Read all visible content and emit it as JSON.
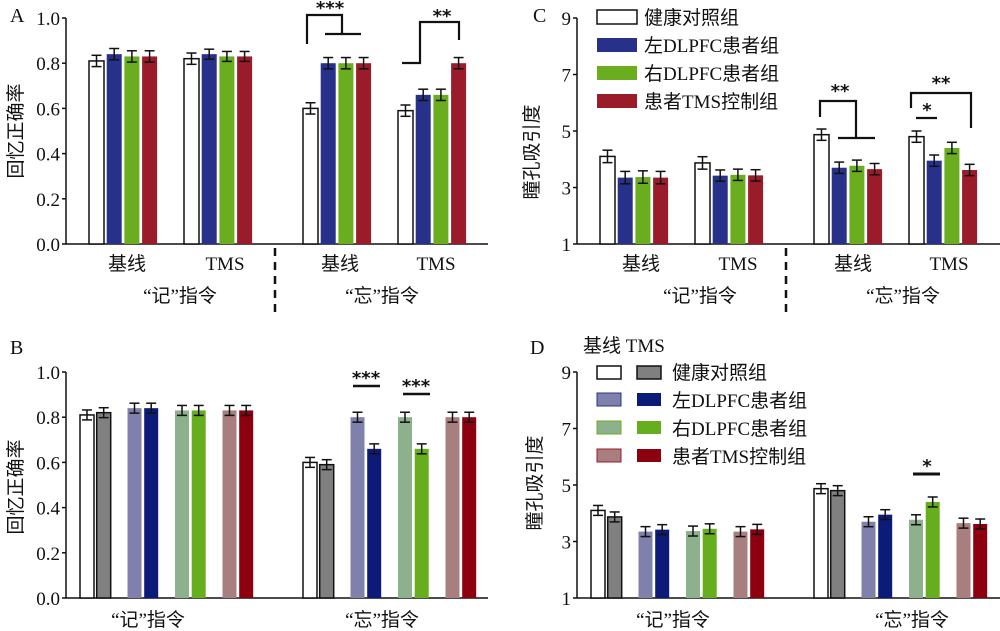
{
  "colors": {
    "healthy": "#ffffff",
    "left_dlpfc": "#27318a",
    "right_dlpfc": "#6aae1f",
    "tms_control": "#9a1c2a",
    "healthy_tms": "#808080",
    "left_dlpfc_base": "#8080ad",
    "left_dlpfc_tms": "#0c1b78",
    "right_dlpfc_base": "#8db08d",
    "right_dlpfc_tms": "#66ae1e",
    "tms_control_base": "#a97e7e",
    "tms_control_tms": "#8c000f"
  },
  "chart_data": [
    {
      "panel": "A",
      "type": "bar",
      "ylabel": "回忆正确率",
      "ylim": [
        0,
        1.0
      ],
      "yticks": [
        "0.0",
        "0.2",
        "0.4",
        "0.6",
        "0.8",
        "1.0"
      ],
      "ytick_values": [
        0,
        0.2,
        0.4,
        0.6,
        0.8,
        1.0
      ],
      "groups": [
        "“记”指令",
        "“忘”指令"
      ],
      "categories": [
        "基线",
        "TMS",
        "基线",
        "TMS"
      ],
      "series": [
        {
          "name": "健康对照组",
          "color_key": "healthy",
          "values": [
            0.81,
            0.82,
            0.6,
            0.59
          ],
          "err": [
            0.025,
            0.025,
            0.025,
            0.025
          ]
        },
        {
          "name": "左DLPFC患者组",
          "color_key": "left_dlpfc",
          "values": [
            0.84,
            0.84,
            0.8,
            0.66
          ],
          "err": [
            0.025,
            0.022,
            0.025,
            0.025
          ]
        },
        {
          "name": "右DLPFC患者组",
          "color_key": "right_dlpfc",
          "values": [
            0.83,
            0.83,
            0.8,
            0.66
          ],
          "err": [
            0.025,
            0.022,
            0.025,
            0.025
          ]
        },
        {
          "name": "患者TMS控制组",
          "color_key": "tms_control",
          "values": [
            0.83,
            0.83,
            0.8,
            0.8
          ],
          "err": [
            0.025,
            0.022,
            0.025,
            0.025
          ]
        }
      ],
      "annotations": [
        "***",
        "**"
      ],
      "grid": false
    },
    {
      "panel": "B",
      "type": "bar",
      "ylabel": "回忆正确率",
      "ylim": [
        0,
        1.0
      ],
      "yticks": [
        "0.0",
        "0.2",
        "0.4",
        "0.6",
        "0.8",
        "1.0"
      ],
      "ytick_values": [
        0,
        0.2,
        0.4,
        0.6,
        0.8,
        1.0
      ],
      "categories": [
        "“记”指令",
        "“忘”指令"
      ],
      "pairs": [
        {
          "name": "健康对照组",
          "base_color_key": "healthy",
          "tms_color_key": "healthy_tms",
          "baseline": [
            0.81,
            0.6
          ],
          "tms": [
            0.82,
            0.59
          ]
        },
        {
          "name": "左DLPFC患者组",
          "base_color_key": "left_dlpfc_base",
          "tms_color_key": "left_dlpfc_tms",
          "baseline": [
            0.84,
            0.8
          ],
          "tms": [
            0.84,
            0.66
          ]
        },
        {
          "name": "右DLPFC患者组",
          "base_color_key": "right_dlpfc_base",
          "tms_color_key": "right_dlpfc_tms",
          "baseline": [
            0.83,
            0.8
          ],
          "tms": [
            0.83,
            0.66
          ]
        },
        {
          "name": "患者TMS控制组",
          "base_color_key": "tms_control_base",
          "tms_color_key": "tms_control_tms",
          "baseline": [
            0.83,
            0.8
          ],
          "tms": [
            0.83,
            0.8
          ]
        }
      ],
      "annotations": [
        "***",
        "***"
      ],
      "grid": false
    },
    {
      "panel": "C",
      "type": "bar",
      "ylabel": "瞳孔吸引度",
      "ylim": [
        1,
        9
      ],
      "yticks": [
        "1",
        "3",
        "5",
        "7",
        "9"
      ],
      "ytick_values": [
        1,
        3,
        5,
        7,
        9
      ],
      "groups": [
        "“记”指令",
        "“忘”指令"
      ],
      "categories": [
        "基线",
        "TMS",
        "基线",
        "TMS"
      ],
      "legend": [
        "健康对照组",
        "左DLPFC患者组",
        "右DLPFC患者组",
        "患者TMS控制组"
      ],
      "legend_position": "top-left",
      "series": [
        {
          "name": "健康对照组",
          "color_key": "healthy",
          "values": [
            4.1,
            3.87,
            4.87,
            4.8
          ],
          "err": [
            0.22,
            0.22,
            0.2,
            0.2
          ]
        },
        {
          "name": "左DLPFC患者组",
          "color_key": "left_dlpfc",
          "values": [
            3.35,
            3.42,
            3.7,
            3.95
          ],
          "err": [
            0.22,
            0.2,
            0.2,
            0.2
          ]
        },
        {
          "name": "右DLPFC患者组",
          "color_key": "right_dlpfc",
          "values": [
            3.37,
            3.45,
            3.77,
            4.4
          ],
          "err": [
            0.22,
            0.2,
            0.2,
            0.2
          ]
        },
        {
          "name": "患者TMS控制组",
          "color_key": "tms_control",
          "values": [
            3.35,
            3.43,
            3.65,
            3.62
          ],
          "err": [
            0.22,
            0.2,
            0.2,
            0.2
          ]
        }
      ],
      "annotations": [
        "**",
        "*",
        "**"
      ],
      "grid": false
    },
    {
      "panel": "D",
      "type": "bar",
      "ylabel": "瞳孔吸引度",
      "ylim": [
        1,
        9
      ],
      "yticks": [
        "1",
        "3",
        "5",
        "7",
        "9"
      ],
      "ytick_values": [
        1,
        3,
        5,
        7,
        9
      ],
      "categories": [
        "“记”指令",
        "“忘”指令"
      ],
      "legend_header": "基线 TMS",
      "legend": [
        "健康对照组",
        "左DLPFC患者组",
        "右DLPFC患者组",
        "患者TMS控制组"
      ],
      "legend_position": "top-left",
      "pairs": [
        {
          "name": "健康对照组",
          "base_color_key": "healthy",
          "tms_color_key": "healthy_tms",
          "baseline": [
            4.1,
            4.87
          ],
          "tms": [
            3.87,
            4.8
          ]
        },
        {
          "name": "左DLPFC患者组",
          "base_color_key": "left_dlpfc_base",
          "tms_color_key": "left_dlpfc_tms",
          "baseline": [
            3.35,
            3.7
          ],
          "tms": [
            3.42,
            3.95
          ]
        },
        {
          "name": "右DLPFC患者组",
          "base_color_key": "right_dlpfc_base",
          "tms_color_key": "right_dlpfc_tms",
          "baseline": [
            3.37,
            3.77
          ],
          "tms": [
            3.45,
            4.4
          ]
        },
        {
          "name": "患者TMS控制组",
          "base_color_key": "tms_control_base",
          "tms_color_key": "tms_control_tms",
          "baseline": [
            3.35,
            3.65
          ],
          "tms": [
            3.43,
            3.62
          ]
        }
      ],
      "annotations": [
        "*"
      ],
      "grid": false
    }
  ],
  "labels": {
    "panel_a": "A",
    "panel_b": "B",
    "panel_c": "C",
    "panel_d": "D",
    "a_ylabel": "回忆正确率",
    "b_ylabel": "回忆正确率",
    "c_ylabel": "瞳孔吸引度",
    "d_ylabel": "瞳孔吸引度",
    "remember": "“记”指令",
    "forget": "“忘”指令",
    "baseline": "基线",
    "tms": "TMS",
    "d_legend_header": "基线 TMS",
    "legend_healthy": "健康对照组",
    "legend_left": "左DLPFC患者组",
    "legend_right": "右DLPFC患者组",
    "legend_control": "患者TMS控制组",
    "sig3": "***",
    "sig2": "**",
    "sig1": "*"
  }
}
